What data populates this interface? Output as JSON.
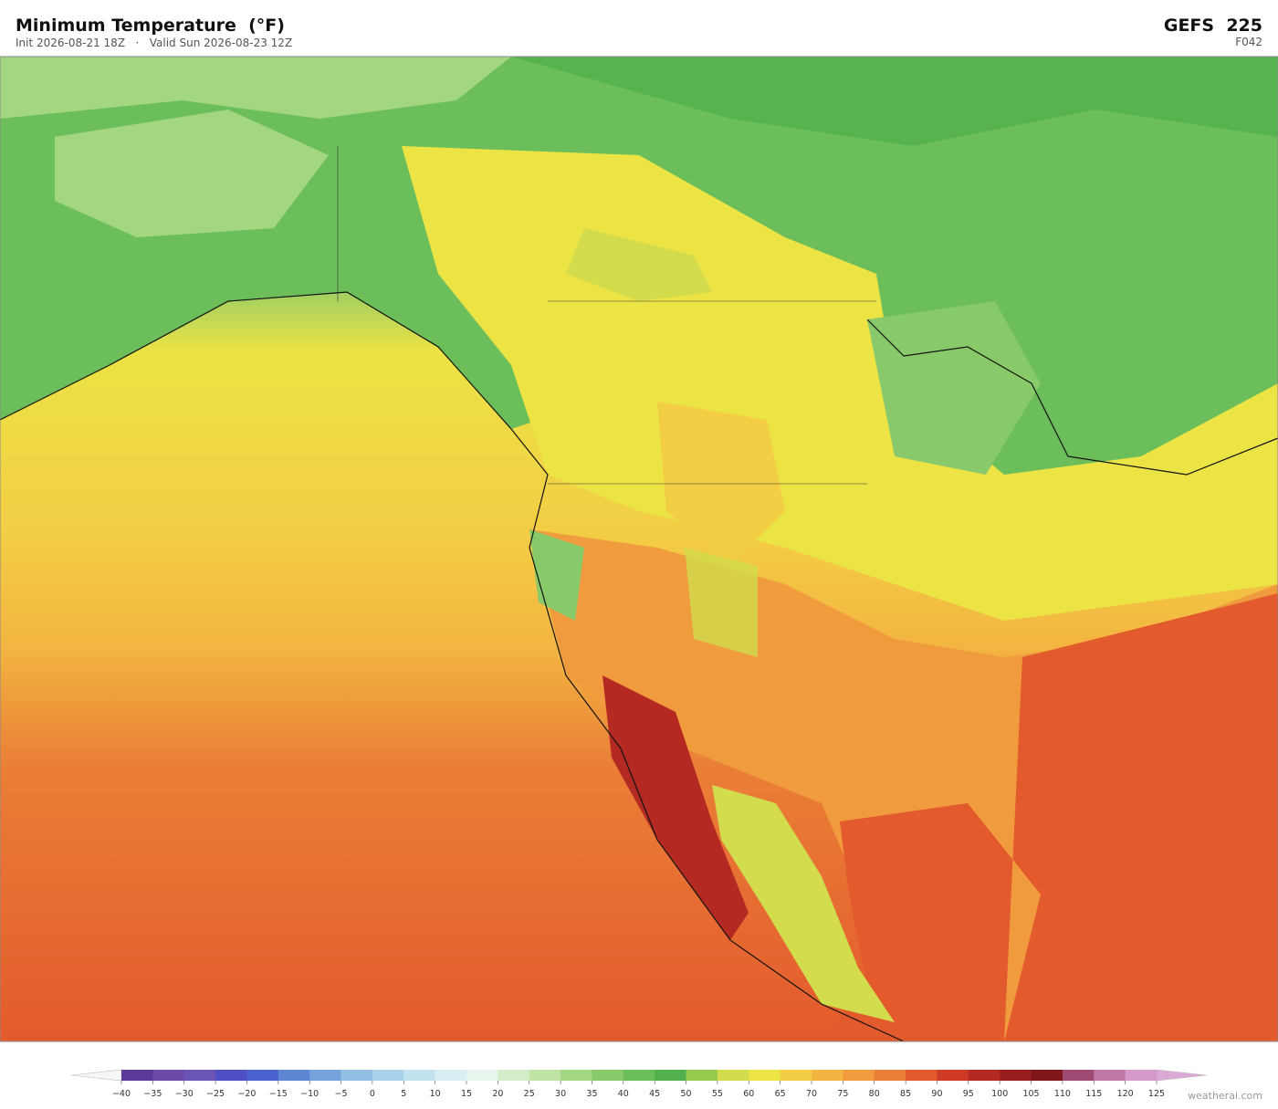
{
  "header": {
    "title": "Minimum Temperature  (°F)",
    "subtitle": "Init 2026-08-21 18Z   ·   Valid Sun 2026-08-23 12Z",
    "model": "GEFS  225",
    "forecast_hour": "F042"
  },
  "colorbar": {
    "ticks": [
      {
        "value": -40,
        "label": "−40"
      },
      {
        "value": -35,
        "label": "−35"
      },
      {
        "value": -30,
        "label": "−30"
      },
      {
        "value": -25,
        "label": "−25"
      },
      {
        "value": -20,
        "label": "−20"
      },
      {
        "value": -15,
        "label": "−15"
      },
      {
        "value": -10,
        "label": "−10"
      },
      {
        "value": -5,
        "label": "−5"
      },
      0,
      5,
      10,
      15,
      20,
      25,
      30,
      35,
      40,
      45,
      50,
      55,
      60,
      65,
      70,
      75,
      80,
      85,
      90,
      95,
      100,
      105,
      110,
      115,
      120,
      125
    ],
    "colors": [
      "#5b3a9a",
      "#6c4aa8",
      "#6a55b5",
      "#4f4fc4",
      "#4a60cc",
      "#5f86d3",
      "#76a2db",
      "#94bfe4",
      "#a8d1ec",
      "#c3e2f0",
      "#d9eff3",
      "#e8f5ec",
      "#d4edc9",
      "#bfe3a4",
      "#a3d683",
      "#88c96a",
      "#6cbe5a",
      "#52b04e",
      "#96c94e",
      "#d2dc4c",
      "#ece345",
      "#f3ce45",
      "#f3b541",
      "#f09c3e",
      "#ea7f37",
      "#e35a2c",
      "#cf3b26",
      "#b42a22",
      "#981d1f",
      "#7e161c",
      "#9e4a72",
      "#c078a8",
      "#d49ac8"
    ]
  },
  "watermark": "weatherai.com"
}
